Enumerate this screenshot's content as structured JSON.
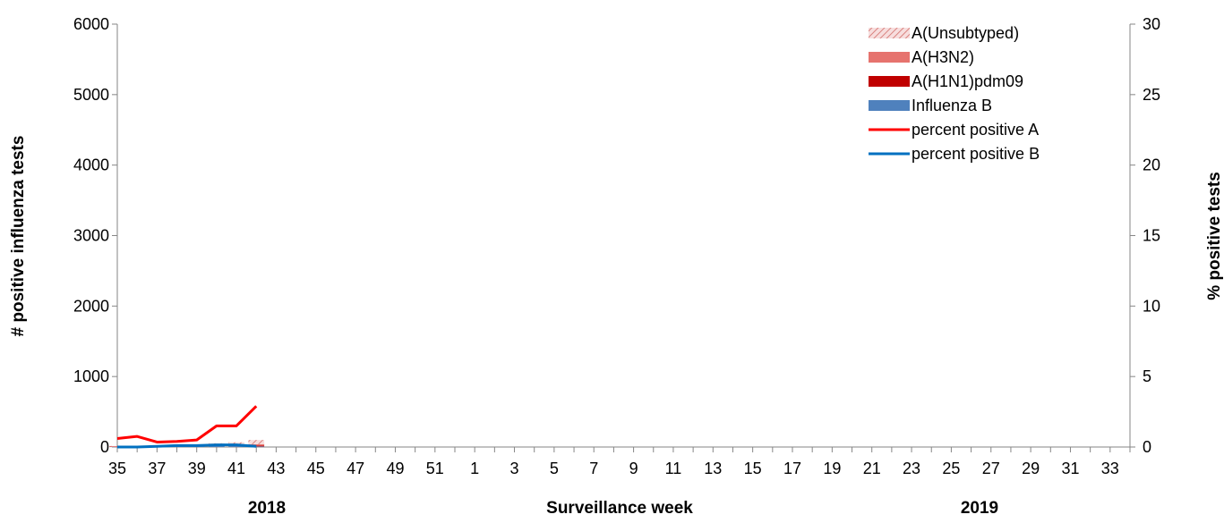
{
  "chart_data": {
    "type": "bar",
    "xlabel": "Surveillance week",
    "ylabel_left": "# positive influenza tests",
    "ylabel_right": "% positive tests",
    "year_labels": [
      "2018",
      "2019"
    ],
    "x_weeks": [
      35,
      36,
      37,
      38,
      39,
      40,
      41,
      42,
      43,
      44,
      45,
      46,
      47,
      48,
      49,
      50,
      51,
      52,
      1,
      2,
      3,
      4,
      5,
      6,
      7,
      8,
      9,
      10,
      11,
      12,
      13,
      14,
      15,
      16,
      17,
      18,
      19,
      20,
      21,
      22,
      23,
      24,
      25,
      26,
      27,
      28,
      29,
      30,
      31,
      32,
      33,
      34
    ],
    "x_tick_labels": [
      "35",
      "37",
      "39",
      "41",
      "43",
      "45",
      "47",
      "49",
      "51",
      "1",
      "3",
      "5",
      "7",
      "9",
      "11",
      "13",
      "15",
      "17",
      "19",
      "21",
      "23",
      "25",
      "27",
      "29",
      "31",
      "33"
    ],
    "ylim_left": [
      0,
      6000
    ],
    "yticks_left": [
      0,
      1000,
      2000,
      3000,
      4000,
      5000,
      6000
    ],
    "ylim_right": [
      0,
      30
    ],
    "yticks_right": [
      0,
      5,
      10,
      15,
      20,
      25,
      30
    ],
    "grid": false,
    "legend_position": "top-right",
    "bar_series": [
      {
        "name": "Influenza B",
        "color": "#4f81bd",
        "values": [
          5,
          5,
          8,
          10,
          12,
          15,
          12,
          8
        ]
      },
      {
        "name": "A(H1N1)pdm09",
        "color": "#c00000",
        "values": [
          2,
          2,
          3,
          4,
          5,
          8,
          10,
          12
        ]
      },
      {
        "name": "A(H3N2)",
        "color": "#e6736e",
        "values": [
          3,
          3,
          4,
          5,
          6,
          10,
          15,
          20
        ]
      },
      {
        "name": "A(Unsubtyped)",
        "color": "#f2c4c2",
        "pattern": "hatched",
        "values": [
          5,
          5,
          8,
          10,
          15,
          20,
          30,
          60
        ]
      }
    ],
    "line_series": [
      {
        "name": "percent positive A",
        "color": "#ff0000",
        "axis": "right",
        "values": [
          0.6,
          0.75,
          0.35,
          0.4,
          0.5,
          1.5,
          1.5,
          2.9
        ]
      },
      {
        "name": "percent positive B",
        "color": "#0070c0",
        "axis": "right",
        "values": [
          0.0,
          0.0,
          0.05,
          0.1,
          0.1,
          0.15,
          0.15,
          0.05
        ]
      }
    ],
    "legend_order": [
      "A(Unsubtyped)",
      "A(H3N2)",
      "A(H1N1)pdm09",
      "Influenza B",
      "percent positive A",
      "percent positive B"
    ]
  }
}
